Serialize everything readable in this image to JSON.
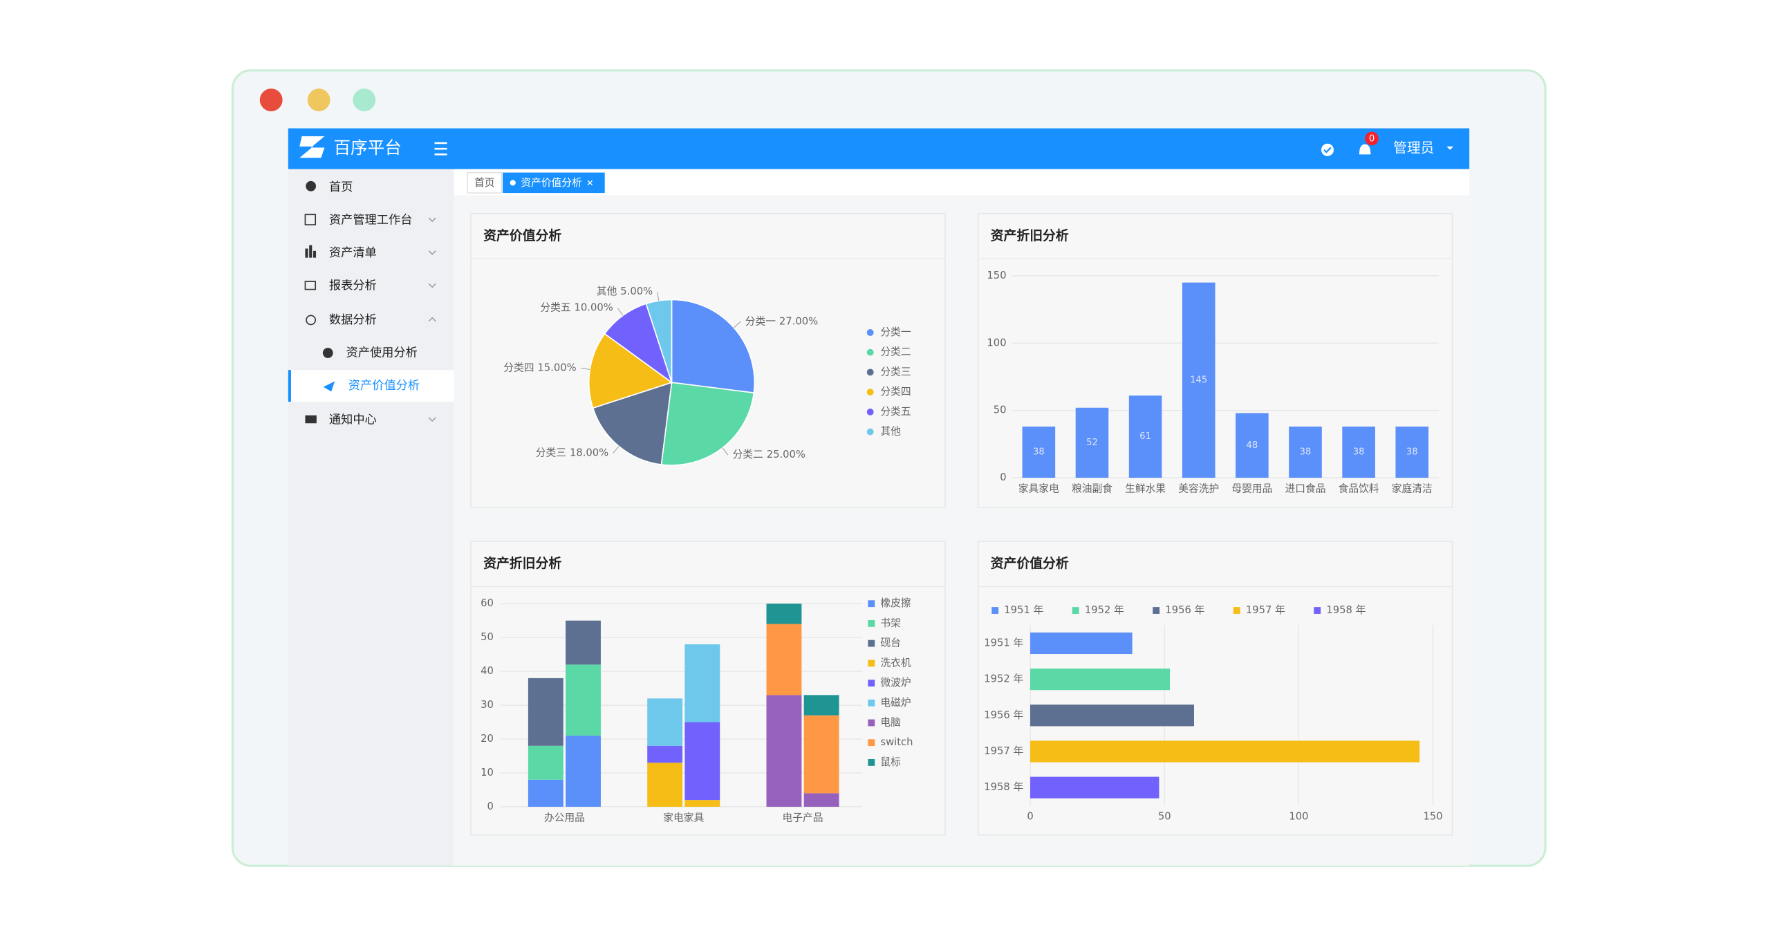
{
  "header": {
    "brand": "百序平台",
    "badge": "0",
    "user": "管理员"
  },
  "sidebar": [
    "首页",
    "资产管理工作台",
    "资产清单",
    "报表分析",
    "数据分析",
    "资产使用分析",
    "资产价值分析",
    "通知中心"
  ],
  "tabs": [
    "首页",
    "资产价值分析"
  ],
  "chart_data": [
    {
      "type": "pie",
      "title": "资产价值分析",
      "categories": [
        "分类一",
        "分类二",
        "分类三",
        "分类四",
        "分类五",
        "其他"
      ],
      "values": [
        27,
        25,
        18,
        15,
        10,
        5
      ],
      "value_labels": [
        "27.00%",
        "25.00%",
        "18.00%",
        "15.00%",
        "10.00%",
        "5.00%"
      ],
      "colors": [
        "#5b8ff9",
        "#5ad8a6",
        "#5d7092",
        "#f6bd16",
        "#7262fd",
        "#6dc8ec"
      ]
    },
    {
      "type": "bar",
      "title": "资产折旧分析",
      "categories": [
        "家具家电",
        "粮油副食",
        "生鲜水果",
        "美容洗护",
        "母婴用品",
        "进口食品",
        "食品饮料",
        "家庭清洁"
      ],
      "values": [
        38,
        52,
        61,
        145,
        48,
        38,
        38,
        38
      ],
      "color": "#5b8ff9",
      "ylim": [
        0,
        150
      ],
      "yticks": [
        0,
        50,
        100,
        150
      ],
      "grid": true
    },
    {
      "type": "stacked-bar",
      "title": "资产折旧分析",
      "categories": [
        "办公用品",
        "家电家具",
        "电子产品"
      ],
      "series": [
        {
          "name": "橡皮擦",
          "color": "#5b8ff9",
          "values": [
            [
              8,
              21
            ],
            [
              null,
              null
            ],
            [
              null,
              null
            ]
          ]
        },
        {
          "name": "书架",
          "color": "#5ad8a6",
          "values": [
            [
              10,
              21
            ],
            [
              null,
              null
            ],
            [
              null,
              null
            ]
          ]
        },
        {
          "name": "砚台",
          "color": "#5d7092",
          "values": [
            [
              20,
              13
            ],
            [
              null,
              null
            ],
            [
              null,
              null
            ]
          ]
        },
        {
          "name": "洗衣机",
          "color": "#f6bd16",
          "values": [
            [
              null,
              null
            ],
            [
              13,
              2
            ],
            [
              null,
              null
            ]
          ]
        },
        {
          "name": "微波炉",
          "color": "#7262fd",
          "values": [
            [
              null,
              null
            ],
            [
              5,
              23
            ],
            [
              null,
              null
            ]
          ]
        },
        {
          "name": "电磁炉",
          "color": "#6dc8ec",
          "values": [
            [
              null,
              null
            ],
            [
              14,
              23
            ],
            [
              null,
              null
            ]
          ]
        },
        {
          "name": "电脑",
          "color": "#9661bc",
          "values": [
            [
              null,
              null
            ],
            [
              null,
              null
            ],
            [
              33,
              4
            ]
          ]
        },
        {
          "name": "switch",
          "color": "#ff9845",
          "values": [
            [
              null,
              null
            ],
            [
              null,
              null
            ],
            [
              21,
              23
            ]
          ]
        },
        {
          "name": "鼠标",
          "color": "#1e9493",
          "values": [
            [
              null,
              null
            ],
            [
              null,
              null
            ],
            [
              6,
              6
            ]
          ]
        }
      ],
      "ylim": [
        0,
        60
      ],
      "yticks": [
        0,
        10,
        20,
        30,
        40,
        50,
        60
      ],
      "grid": true
    },
    {
      "type": "hbar",
      "title": "资产价值分析",
      "categories": [
        "1951 年",
        "1952 年",
        "1956 年",
        "1957 年",
        "1958 年"
      ],
      "values": [
        38,
        52,
        61,
        145,
        48
      ],
      "colors": [
        "#5b8ff9",
        "#5ad8a6",
        "#5d7092",
        "#f6bd16",
        "#7262fd"
      ],
      "xlim": [
        0,
        150
      ],
      "xticks": [
        0,
        50,
        100,
        150
      ],
      "grid": true
    }
  ]
}
